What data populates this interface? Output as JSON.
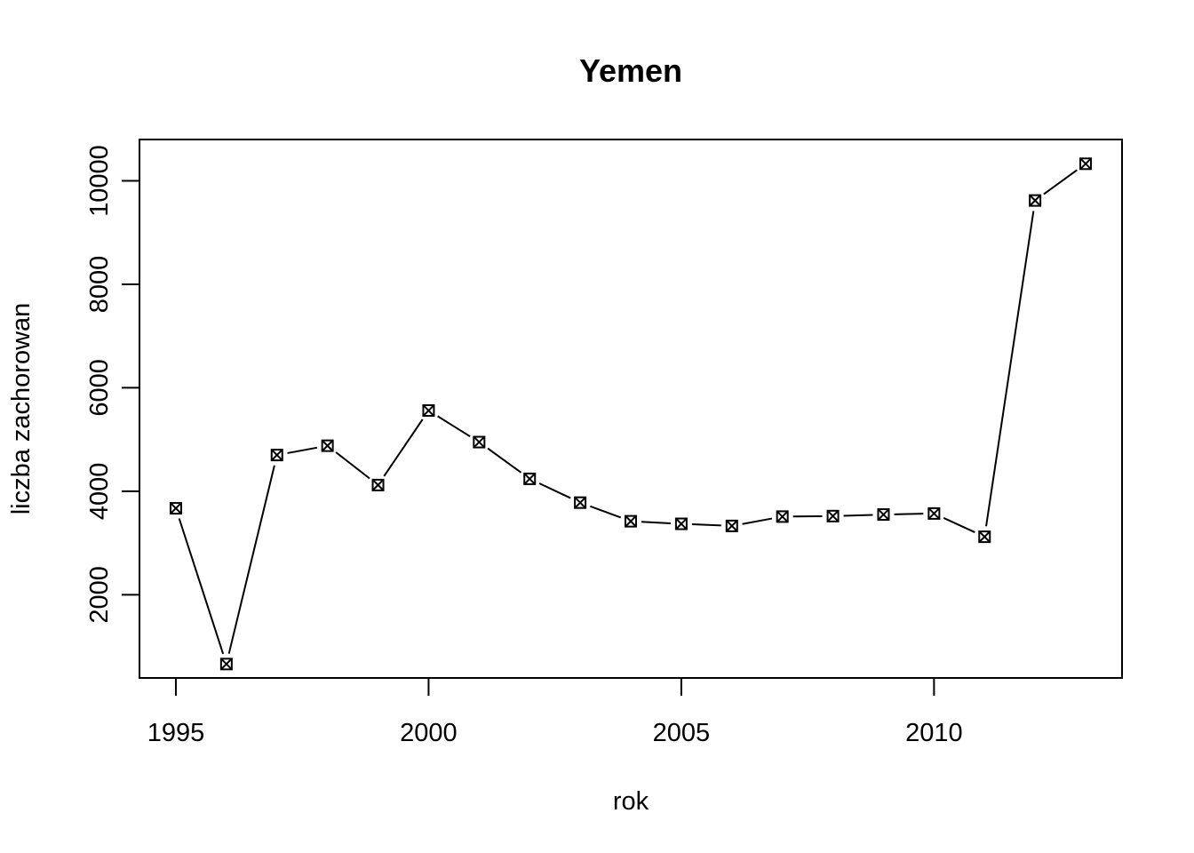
{
  "chart_data": {
    "type": "line",
    "title": "Yemen",
    "xlabel": "rok",
    "ylabel": "liczba zachorowan",
    "x": [
      1995,
      1996,
      1997,
      1998,
      1999,
      2000,
      2001,
      2002,
      2003,
      2004,
      2005,
      2006,
      2007,
      2008,
      2009,
      2010,
      2011,
      2012,
      2013
    ],
    "series": [
      {
        "values": [
          3670,
          660,
          4700,
          4880,
          4120,
          5560,
          4950,
          4240,
          3780,
          3420,
          3370,
          3330,
          3510,
          3520,
          3550,
          3570,
          3120,
          9620,
          10330
        ]
      }
    ],
    "xticks": [
      "1995",
      "2000",
      "2005",
      "2010"
    ],
    "yticks": [
      "2000",
      "4000",
      "6000",
      "8000",
      "10000"
    ],
    "xlim": [
      1994.28,
      2013.72
    ],
    "ylim": [
      391.2,
      10798.8
    ],
    "grid": false,
    "legend": "none",
    "marker": "square-with-x",
    "line_style": "line with gaps at points (type b)",
    "line_color": "#000000"
  }
}
